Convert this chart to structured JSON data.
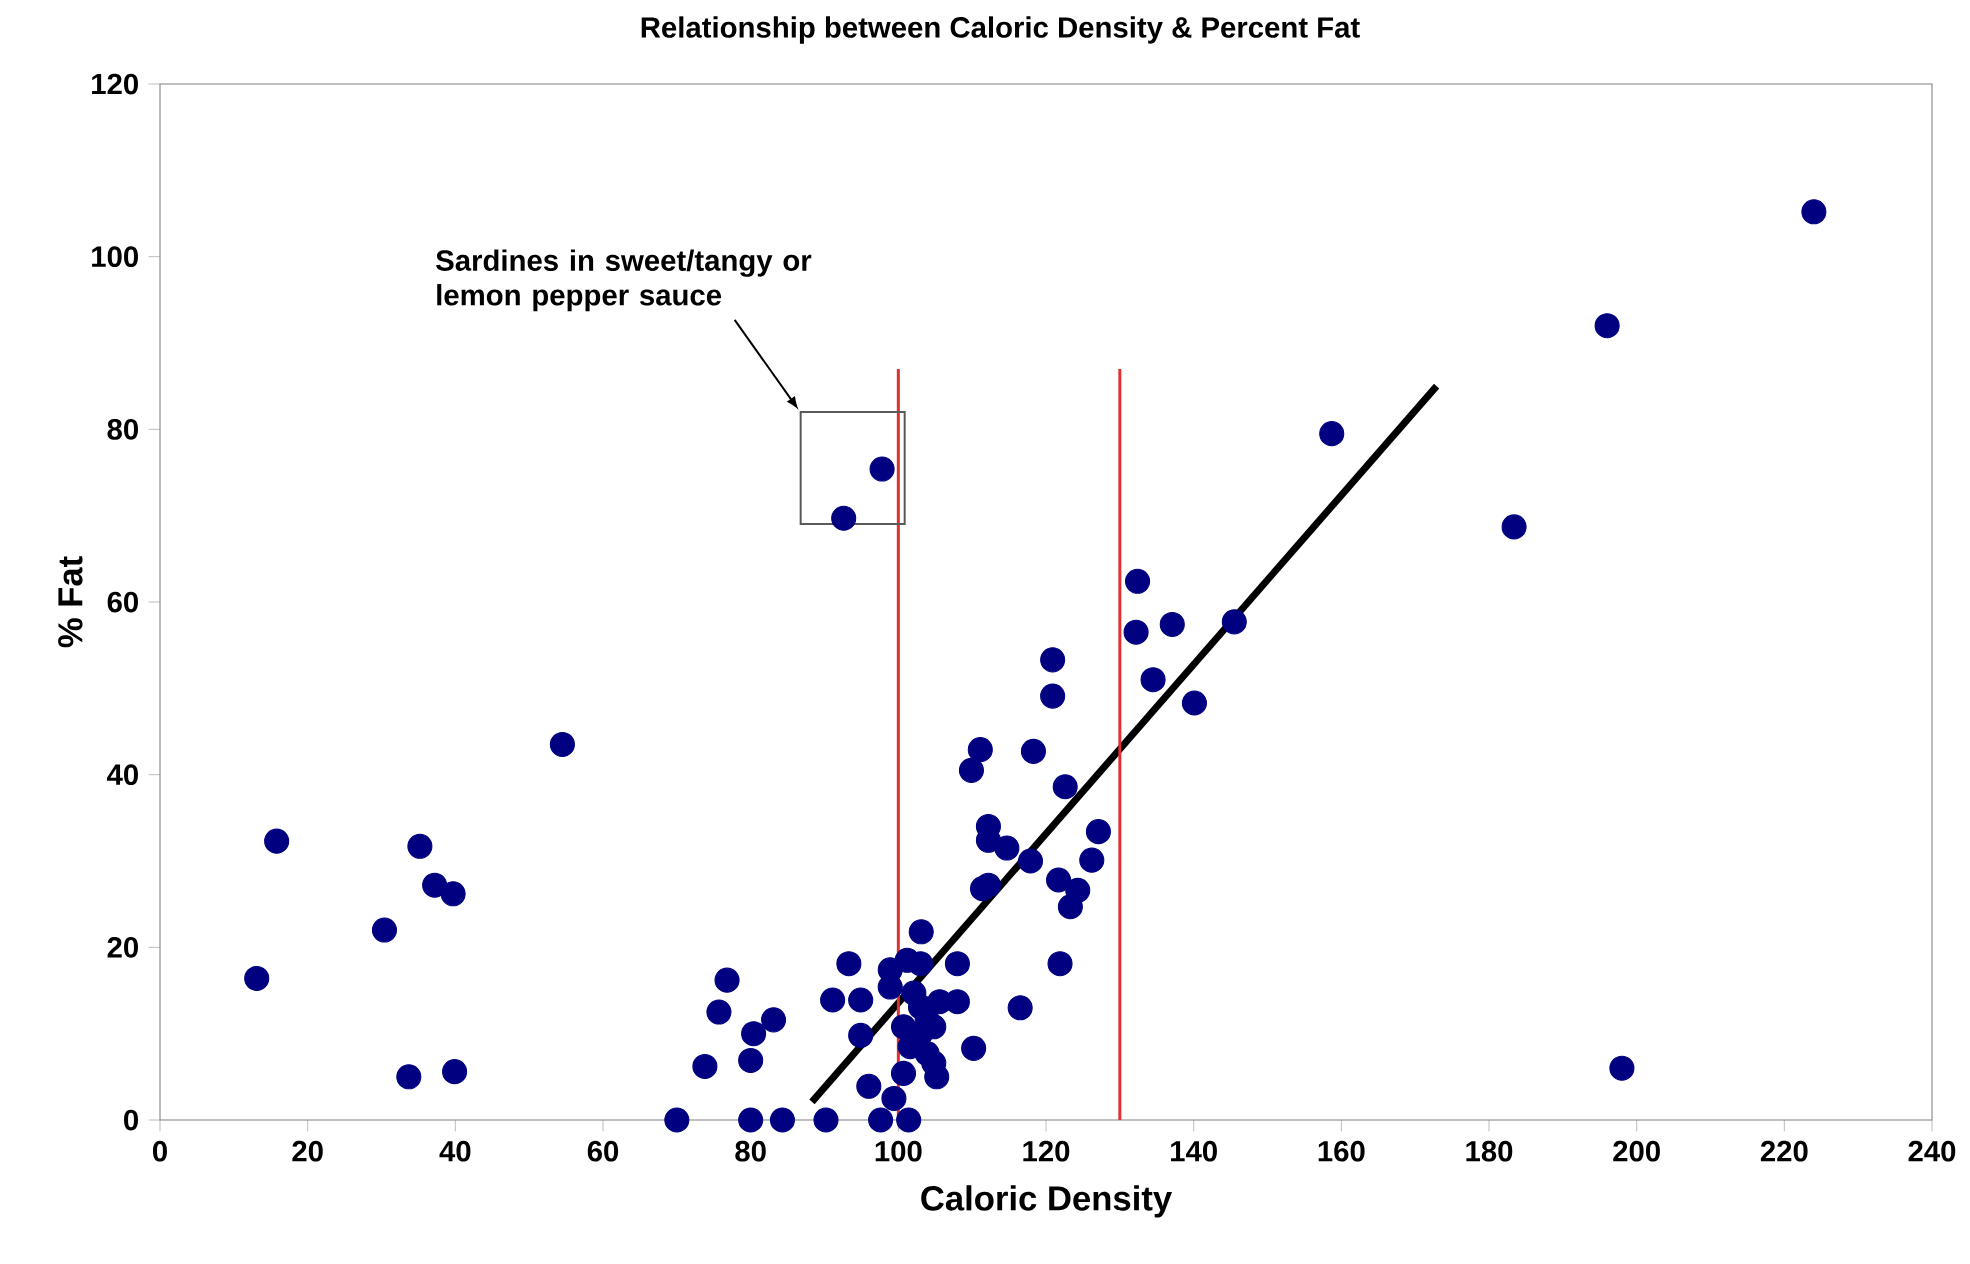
{
  "chart_data": {
    "type": "scatter",
    "title": "Relationship between Caloric Density & Percent Fat",
    "xlabel": "Caloric Density",
    "ylabel": "% Fat",
    "xlim": [
      0,
      240
    ],
    "ylim": [
      0,
      120
    ],
    "xticks": [
      0,
      20,
      40,
      60,
      80,
      100,
      120,
      140,
      160,
      180,
      200,
      220,
      240
    ],
    "yticks": [
      0,
      20,
      40,
      60,
      80,
      100,
      120
    ],
    "grid": false,
    "series": [
      {
        "marker": "circle",
        "color": "#000080",
        "x": [
          13.1,
          15.8,
          30.4,
          33.7,
          35.2,
          37.2,
          39.7,
          39.9,
          54.5,
          70,
          73.8,
          75.7,
          76.8,
          80,
          80,
          80.4,
          83.1,
          84.3,
          90.2,
          91.1,
          93.3,
          94.9,
          94.9,
          96,
          97.6,
          98.9,
          98.9,
          99.4,
          100.7,
          100.7,
          101.2,
          101.4,
          101.6,
          102.1,
          103,
          103,
          103,
          103.1,
          103.9,
          103.9,
          104.8,
          104.8,
          105.2,
          105.6,
          108,
          108,
          110.2,
          109.9,
          111.1,
          111.4,
          112.2,
          112.2,
          112.2,
          114.7,
          116.5,
          117.9,
          118.3,
          120.9,
          120.9,
          121.7,
          121.9,
          122.6,
          123.3,
          124.3,
          126.2,
          127.1,
          132.2,
          132.4,
          134.5,
          137.1,
          140.1,
          145.5,
          158.7,
          183.4,
          196,
          198,
          224,
          92.6,
          97.8
        ],
        "values": [
          16.4,
          32.3,
          22,
          5,
          31.7,
          27.2,
          26.2,
          5.6,
          43.5,
          0,
          6.2,
          12.5,
          16.2,
          0,
          6.9,
          10,
          11.6,
          0,
          0,
          13.9,
          18.1,
          13.9,
          9.8,
          3.9,
          0,
          17.4,
          15.4,
          2.5,
          10.8,
          5.4,
          18.5,
          0,
          8.5,
          14.7,
          18.1,
          13.1,
          10,
          21.8,
          11.6,
          7.7,
          10.8,
          6.6,
          5,
          13.7,
          18.1,
          13.7,
          8.3,
          40.5,
          42.9,
          26.8,
          27.2,
          34,
          32.4,
          31.5,
          13,
          30,
          42.7,
          53.3,
          49.1,
          27.8,
          18.1,
          38.6,
          24.7,
          26.6,
          30.1,
          33.4,
          56.5,
          62.4,
          51,
          57.4,
          48.3,
          57.7,
          79.5,
          68.7,
          92,
          6,
          105.2,
          69.7,
          75.4
        ]
      },
      {
        "type": "line",
        "color": "#000000",
        "x": [
          88.3,
          172.9
        ],
        "values": [
          2.1,
          85
        ],
        "line_style": "solid"
      }
    ],
    "ref_lines": [
      {
        "axis": "x",
        "value": 100,
        "color": "#e03030"
      },
      {
        "axis": "x",
        "value": 130,
        "color": "#e03030"
      }
    ],
    "annotations": [
      "Sardines in sweet/tangy or lemon pepper sauce"
    ]
  }
}
